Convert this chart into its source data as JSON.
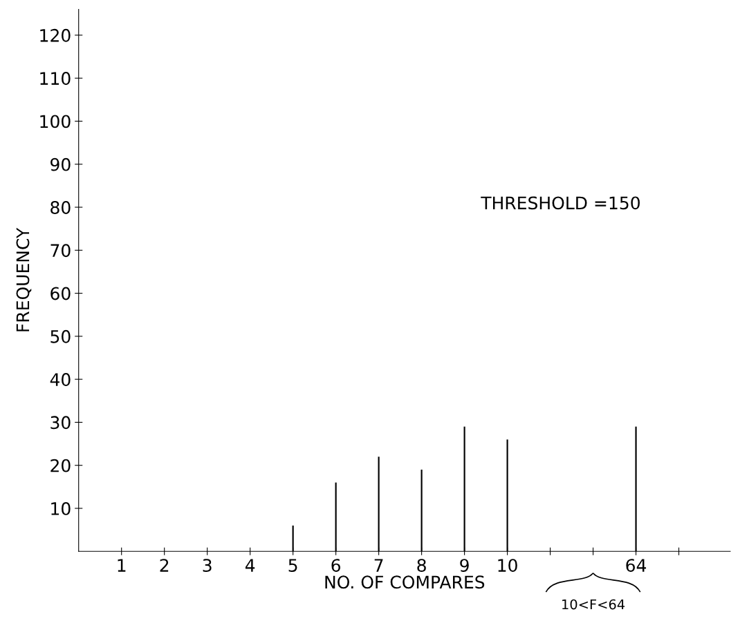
{
  "chart_data": {
    "type": "bar",
    "xlabel": "NO. OF COMPARES",
    "ylabel": "FREQUENCY",
    "categories": [
      "1",
      "2",
      "3",
      "4",
      "5",
      "6",
      "7",
      "8",
      "9",
      "10",
      null,
      null,
      "64",
      null
    ],
    "values": [
      null,
      null,
      null,
      null,
      6,
      16,
      22,
      19,
      29,
      26,
      null,
      null,
      29,
      null
    ],
    "color": "#000000",
    "ylim": [
      0,
      126
    ],
    "yticks": [
      10,
      20,
      30,
      40,
      50,
      60,
      70,
      80,
      90,
      100,
      110,
      120
    ],
    "annotations": [
      "THRESHOLD =150",
      "10<F<64"
    ],
    "grid": false
  }
}
